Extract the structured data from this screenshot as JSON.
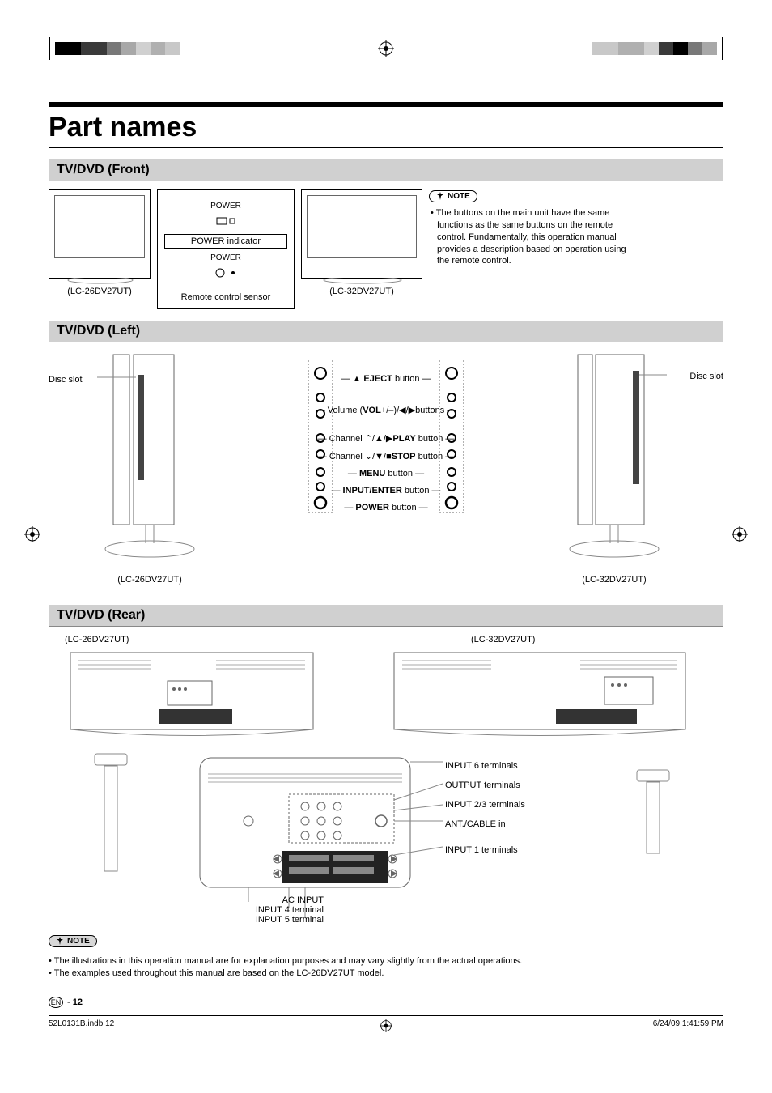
{
  "crop_colors": {
    "left": [
      "#000000",
      "#3a3a3a",
      "#787878",
      "#a8a8a8",
      "#d0d0d0",
      "#b0b0b0",
      "#c8c8c8"
    ],
    "right": [
      "#c8c8c8",
      "#b0b0b0",
      "#d0d0d0",
      "#3a3a3a",
      "#000000",
      "#787878",
      "#a8a8a8"
    ]
  },
  "title": "Part names",
  "sections": {
    "front": "TV/DVD (Front)",
    "left": "TV/DVD (Left)",
    "rear": "TV/DVD (Rear)"
  },
  "front": {
    "power_label": "POWER",
    "power_indicator": "POWER indicator",
    "power_small": "POWER",
    "remote_sensor": "Remote control sensor",
    "model_left": "(LC-26DV27UT)",
    "model_right": "(LC-32DV27UT)",
    "note_badge": "NOTE",
    "note_text": "The buttons on the main unit have the same functions as the same buttons on the remote control. Fundamentally, this operation manual provides a description based on operation using the remote control."
  },
  "left": {
    "disc_slot": "Disc slot",
    "buttons": {
      "eject": "EJECT",
      "eject_suffix": " button",
      "eject_prefix": "▲ ",
      "vol_prefix": "Volume (",
      "vol_bold": "VOL",
      "vol_suffix": "+/–)/◀/▶buttons",
      "ch_up": "Channel  ⌃/▲/▶",
      "play": "PLAY",
      "play_suffix": " button",
      "ch_down": "Channel ⌄/▼/■",
      "stop": "STOP",
      "stop_suffix": " button",
      "menu": "MENU",
      "menu_suffix": " button",
      "input": "INPUT/ENTER",
      "input_suffix": " button",
      "power": "POWER",
      "power_suffix": " button"
    },
    "model_left": "(LC-26DV27UT)",
    "model_right": "(LC-32DV27UT)"
  },
  "rear": {
    "model_left": "(LC-26DV27UT)",
    "model_right": "(LC-32DV27UT)",
    "labels_right": [
      "INPUT 6 terminals",
      "OUTPUT terminals",
      "INPUT 2/3 terminals",
      "ANT./CABLE in",
      "INPUT 1 terminals"
    ],
    "labels_bottom": [
      "AC INPUT",
      "INPUT 4 terminal",
      "INPUT 5 terminal"
    ]
  },
  "footnote": {
    "badge": "NOTE",
    "line1": "The illustrations in this operation manual are for explanation purposes and may vary slightly from the actual operations.",
    "line2": "The examples used throughout this manual are based on the LC-26DV27UT model."
  },
  "page_num_en": "EN",
  "page_num": "12",
  "footer": {
    "left": "52L0131B.indb   12",
    "right": "6/24/09   1:41:59 PM"
  }
}
